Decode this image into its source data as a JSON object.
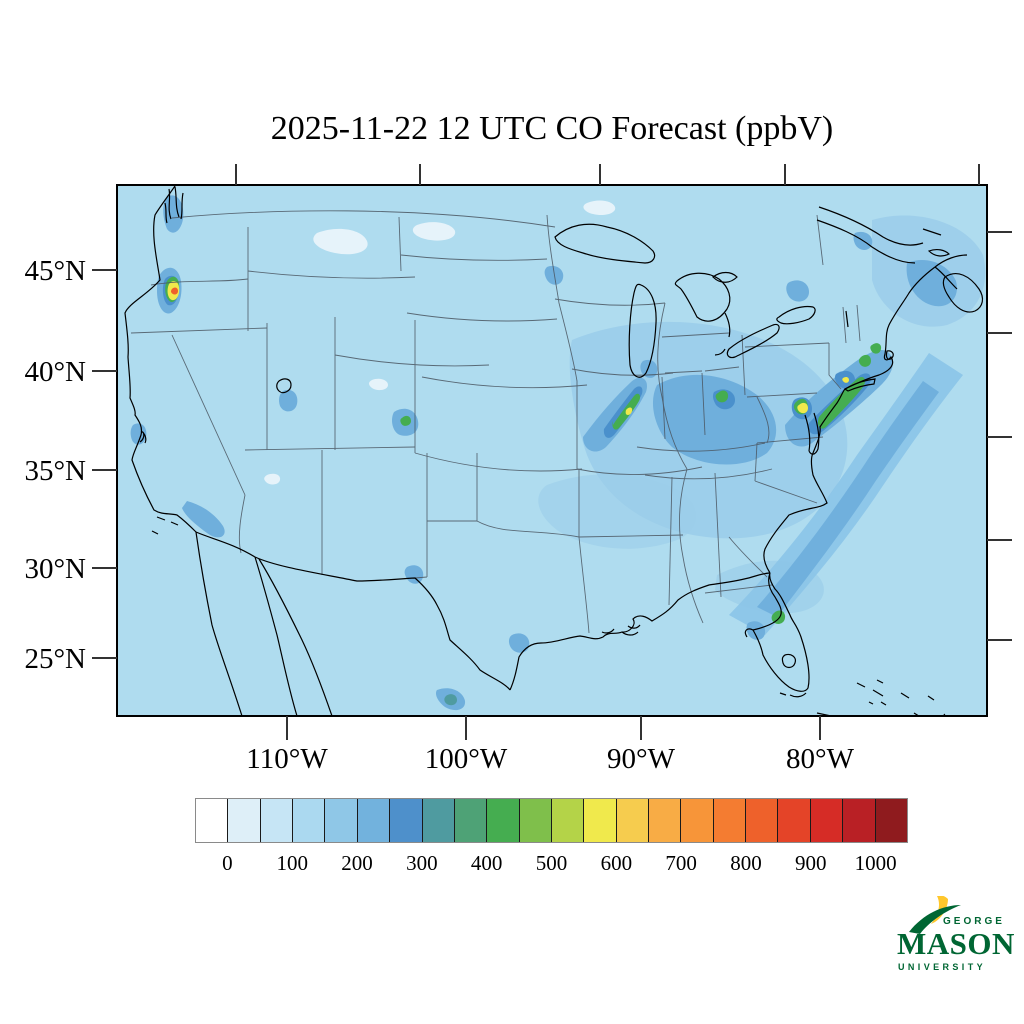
{
  "figure": {
    "title": "2025-11-22 12 UTC CO Forecast (ppbV)"
  },
  "map": {
    "lat_tick_labels": [
      "45°N",
      "40°N",
      "35°N",
      "30°N",
      "25°N"
    ],
    "lon_tick_labels": [
      "110°W",
      "100°W",
      "90°W",
      "80°W"
    ]
  },
  "colorbar": {
    "labels": [
      "0",
      "100",
      "200",
      "300",
      "400",
      "500",
      "600",
      "700",
      "800",
      "900",
      "1000"
    ],
    "colors": [
      "#FFFFFF",
      "#DEEFF8",
      "#C6E5F5",
      "#ABD9F0",
      "#8FC7E7",
      "#72B2DD",
      "#4E90CB",
      "#4F9BA0",
      "#4EA276",
      "#45AD50",
      "#7FBF4B",
      "#B4D348",
      "#F0E94C",
      "#F6CC4E",
      "#F8AC45",
      "#F79539",
      "#F47C31",
      "#EE612B",
      "#E44428",
      "#D62C26",
      "#B92025",
      "#8F1B1E"
    ],
    "units": "ppbV"
  },
  "logo": {
    "george": "GEORGE",
    "mason": "MASON",
    "university": "UNIVERSITY",
    "green": "#006633",
    "gold": "#FFC72C"
  },
  "chart_data": {
    "type": "heatmap",
    "variable": "CO surface concentration forecast",
    "units": "ppbV",
    "title": "2025-11-22 12 UTC CO Forecast (ppbV)",
    "valid_time": "2025-11-22 12 UTC",
    "region": "Continental United States (Lambert-conformal style map)",
    "lon_tick_labels_deg_w": [
      110,
      100,
      90,
      80
    ],
    "lat_tick_labels_deg_n": [
      45,
      40,
      35,
      30,
      25
    ],
    "approx_lon_range_deg_w": [
      120,
      70.5
    ],
    "approx_lat_range_deg_n": [
      23,
      49.3
    ],
    "colorbar_levels_ppbv": [
      0,
      50,
      100,
      150,
      200,
      250,
      300,
      350,
      400,
      450,
      500,
      550,
      600,
      650,
      700,
      750,
      800,
      850,
      900,
      950,
      1000
    ],
    "colorbar_tick_labels_ppbv": [
      0,
      100,
      200,
      300,
      400,
      500,
      600,
      700,
      800,
      900,
      1000
    ],
    "background_value_ppbv": "0-100 (light blue over most of domain, land and ocean)",
    "features": [
      {
        "location": "Portland / Salem, Oregon (Willamette Valley)",
        "peak_ppbv": 750
      },
      {
        "location": "Seattle / Puget Sound, Washington",
        "peak_ppbv": 250
      },
      {
        "location": "San Francisco Bay Area, California",
        "peak_ppbv": 250
      },
      {
        "location": "Los Angeles coastal plume, California",
        "peak_ppbv": 200
      },
      {
        "location": "Salt Lake City, Utah",
        "peak_ppbv": 200
      },
      {
        "location": "Denver, Colorado",
        "peak_ppbv": 400
      },
      {
        "location": "El Paso / Ciudad Juarez",
        "peak_ppbv": 250
      },
      {
        "location": "Monterrey, Mexico",
        "peak_ppbv": 450
      },
      {
        "location": "Houston / Texas Gulf coast",
        "peak_ppbv": 200
      },
      {
        "location": "Chicago - Illinois plume (SW-NE streak)",
        "peak_ppbv": 600
      },
      {
        "location": "Minneapolis, Minnesota",
        "peak_ppbv": 200
      },
      {
        "location": "Ohio Valley / Pittsburgh",
        "peak_ppbv": 450
      },
      {
        "location": "Baltimore - Washington DC",
        "peak_ppbv": 650
      },
      {
        "location": "New York City - Long Island",
        "peak_ppbv": 550
      },
      {
        "location": "Connecticut - Boston corridor",
        "peak_ppbv": 450
      },
      {
        "location": "Orlando, Florida",
        "peak_ppbv": 400
      },
      {
        "location": "Offshore Atlantic plume, SE coast to Nova Scotia",
        "peak_ppbv": 250
      }
    ]
  }
}
